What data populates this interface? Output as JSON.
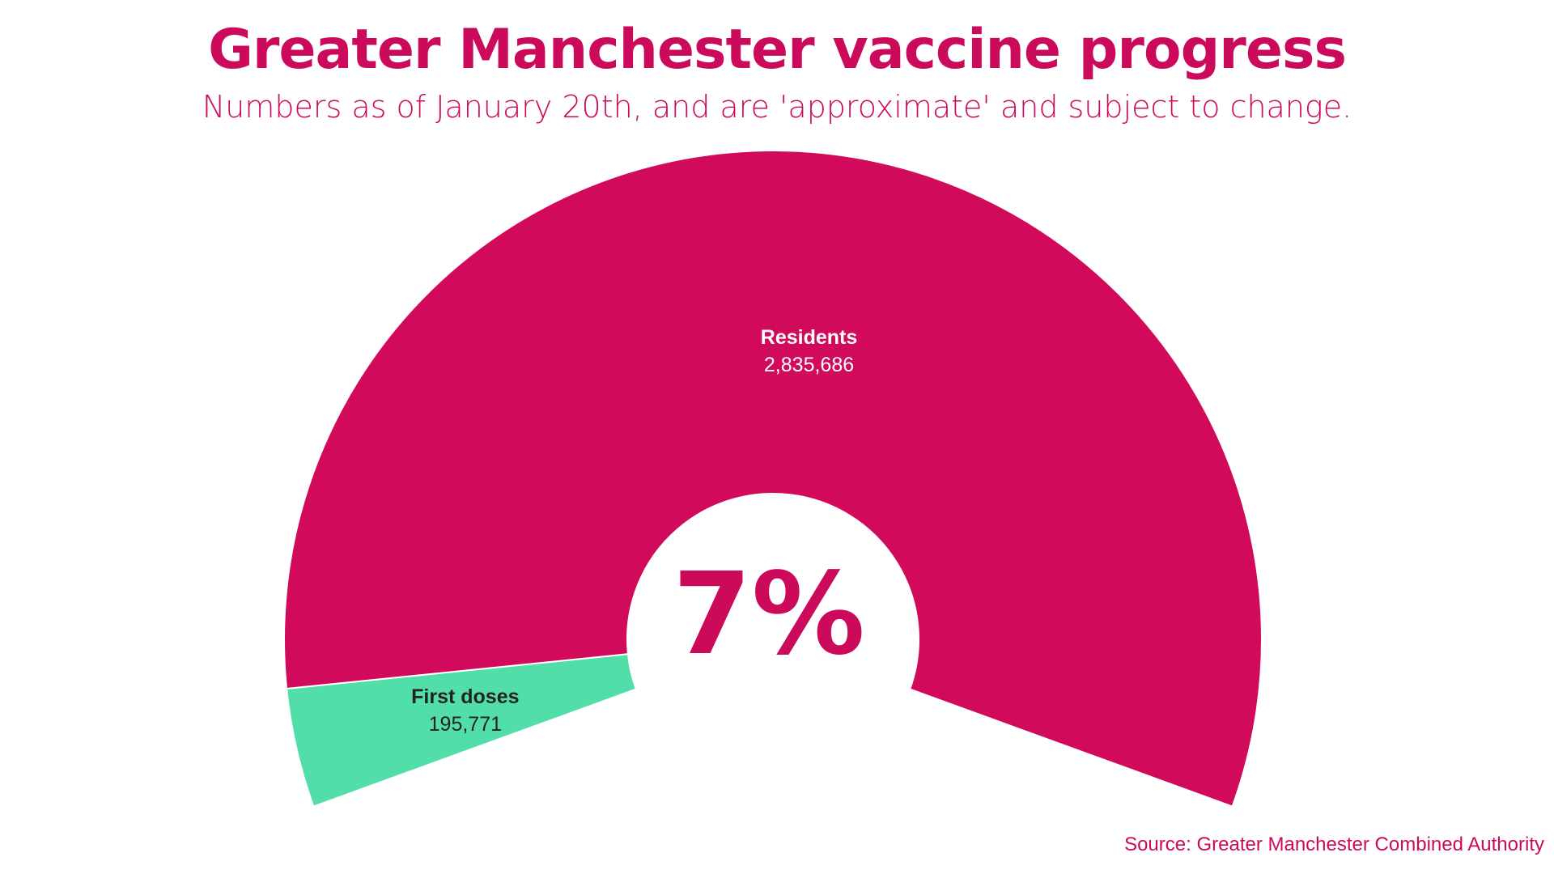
{
  "title": "Greater Manchester vaccine progress",
  "subtitle": "Numbers as of January 20th, and are 'approximate' and subject to change.",
  "center_label": "7%",
  "source": "Source: Greater Manchester Combined Authority",
  "colors": {
    "brand": "#cc0a5c",
    "residents": "#d10a5b",
    "first_doses": "#52dea8"
  },
  "chart_data": {
    "type": "pie",
    "style": "semi-donut",
    "title": "Greater Manchester vaccine progress",
    "subtitle": "Numbers as of January 20th, and are 'approximate' and subject to change.",
    "slices": [
      {
        "name": "First doses",
        "value": 195771,
        "value_label": "195,771",
        "color": "#52dea8",
        "label_color": "#222222"
      },
      {
        "name": "Residents",
        "value": 2835686,
        "value_label": "2,835,686",
        "color": "#d10a5b",
        "label_color": "#ffffff"
      }
    ],
    "center_text": "7%"
  }
}
